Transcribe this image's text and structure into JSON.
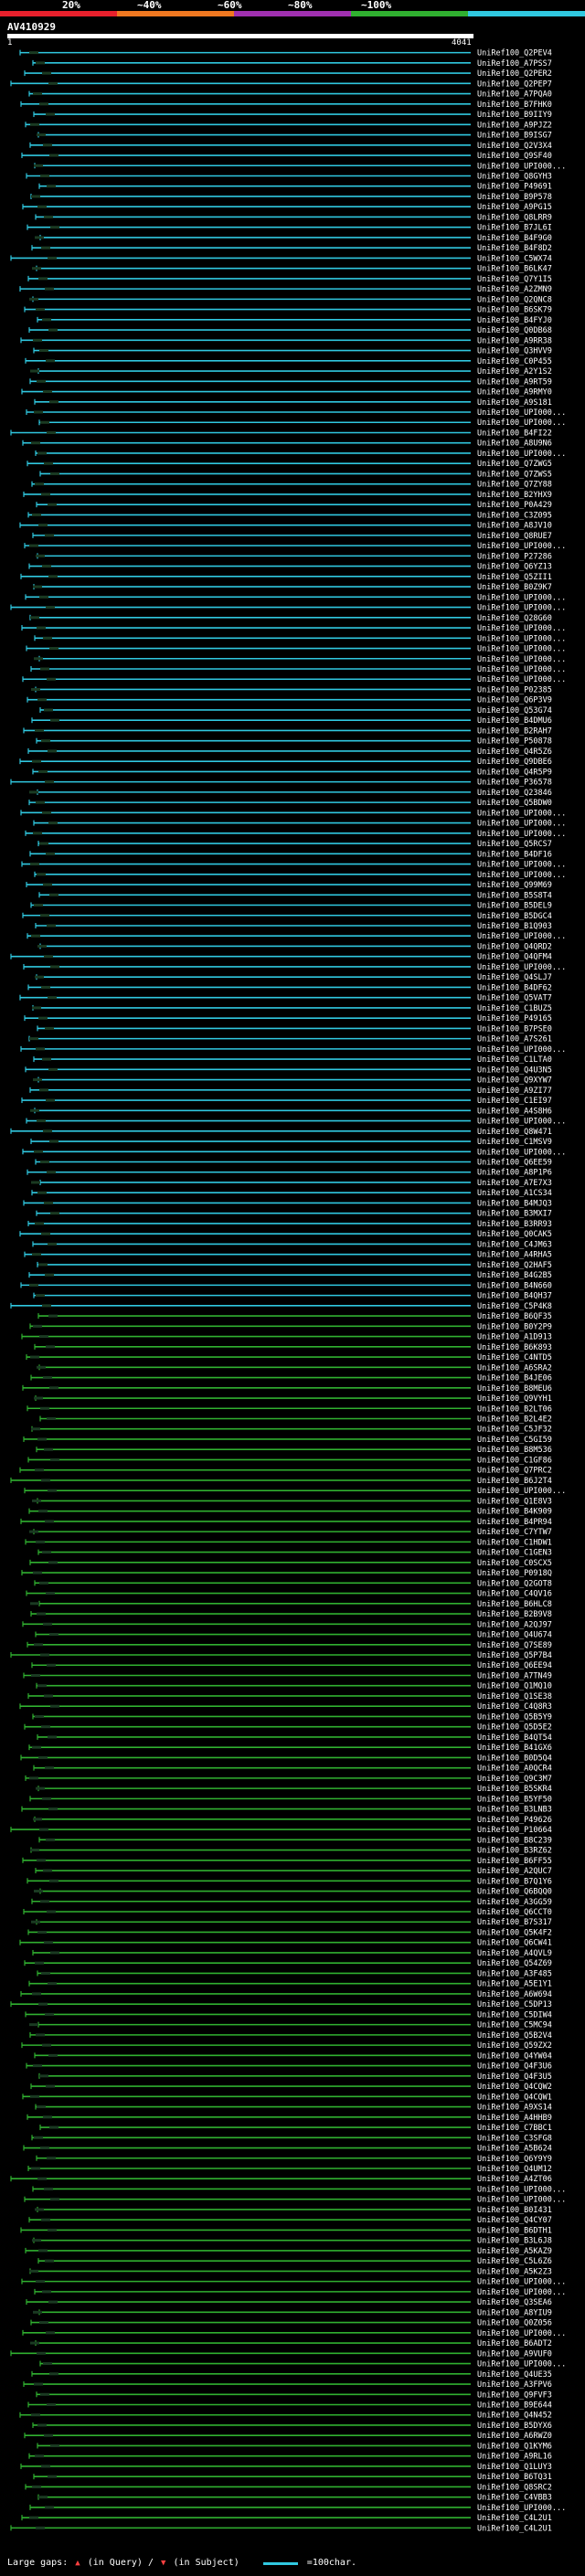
{
  "header": {
    "identity_scale": [
      {
        "label": "20%",
        "color": "#e8202c"
      },
      {
        "label": "~40%",
        "color": "#f07820"
      },
      {
        "label": "~60%",
        "color": "#a030b0"
      },
      {
        "label": "~80%",
        "color": "#30b030"
      },
      {
        "label": "~100%",
        "color": "#30c8e0"
      }
    ],
    "query_name": "AV410929",
    "start": "1",
    "end": "4041"
  },
  "footer": {
    "large_gaps_label": "Large gaps:",
    "in_query": "(in Query)",
    "separator": "/",
    "in_subject": "(in Subject)",
    "scale_label": "=100char."
  },
  "hits": [
    "UniRef100_Q2PEV4",
    "UniRef100_A7PSS7",
    "UniRef100_Q2PER2",
    "UniRef100_Q2PEP7",
    "UniRef100_A7PQA0",
    "UniRef100_B7FHK0",
    "UniRef100_B9IIY9",
    "UniRef100_A9PJZ2",
    "UniRef100_B9ISG7",
    "UniRef100_Q2V3X4",
    "UniRef100_Q9SF40",
    "UniRef100_UPI000...",
    "UniRef100_Q8GYH3",
    "UniRef100_P49691",
    "UniRef100_B9P578",
    "UniRef100_A9PG15",
    "UniRef100_Q8LRR9",
    "UniRef100_B7JL6I",
    "UniRef100_B4F9G0",
    "UniRef100_B4F8D2",
    "UniRef100_C5WX74",
    "UniRef100_B6LK47",
    "UniRef100_Q7Y1I5",
    "UniRef100_A2ZMN9",
    "UniRef100_Q2QNC8",
    "UniRef100_B6SK79",
    "UniRef100_B4FYJ0",
    "UniRef100_Q0DB68",
    "UniRef100_A9RR38",
    "UniRef100_Q3HVV9",
    "UniRef100_C0P455",
    "UniRef100_A2Y1S2",
    "UniRef100_A9RT59",
    "UniRef100_A9RMY0",
    "UniRef100_A9S181",
    "UniRef100_UPI000...",
    "UniRef100_UPI000...",
    "UniRef100_B4FI22",
    "UniRef100_A8U9N6",
    "UniRef100_UPI000...",
    "UniRef100_Q7ZWG5",
    "UniRef100_Q7ZWS5",
    "UniRef100_Q7ZY88",
    "UniRef100_B2YHX9",
    "UniRef100_P0A429",
    "UniRef100_C3Z095",
    "UniRef100_A8JV10",
    "UniRef100_Q8RUE7",
    "UniRef100_UPI000...",
    "UniRef100_P27286",
    "UniRef100_Q6YZ13",
    "UniRef100_Q5ZII1",
    "UniRef100_B0Z9K7",
    "UniRef100_UPI000...",
    "UniRef100_UPI000...",
    "UniRef100_Q28G60",
    "UniRef100_UPI000...",
    "UniRef100_UPI000...",
    "UniRef100_UPI000...",
    "UniRef100_UPI000...",
    "UniRef100_UPI000...",
    "UniRef100_UPI000...",
    "UniRef100_P02385",
    "UniRef100_Q6P3V9",
    "UniRef100_Q53G74",
    "UniRef100_B4DMU6",
    "UniRef100_B2RAH7",
    "UniRef100_P50878",
    "UniRef100_Q4R5Z6",
    "UniRef100_Q9DBE6",
    "UniRef100_Q4R5P9",
    "UniRef100_P36578",
    "UniRef100_Q23846",
    "UniRef100_Q5BDW0",
    "UniRef100_UPI000...",
    "UniRef100_UPI000...",
    "UniRef100_UPI000...",
    "UniRef100_Q5RCS7",
    "UniRef100_B4DF16",
    "UniRef100_UPI000...",
    "UniRef100_UPI000...",
    "UniRef100_Q99M69",
    "UniRef100_B5S8T4",
    "UniRef100_B5DEL9",
    "UniRef100_B5DGC4",
    "UniRef100_B1Q903",
    "UniRef100_UPI000...",
    "UniRef100_Q4QRD2",
    "UniRef100_Q4QFM4",
    "UniRef100_UPI000...",
    "UniRef100_Q4SLJ7",
    "UniRef100_B4DF62",
    "UniRef100_Q5VAT7",
    "UniRef100_C1BUZ5",
    "UniRef100_P49165",
    "UniRef100_B7PSE0",
    "UniRef100_A7S261",
    "UniRef100_UPI000...",
    "UniRef100_C1LTA0",
    "UniRef100_Q4U3N5",
    "UniRef100_Q9XYW7",
    "UniRef100_A9ZI77",
    "UniRef100_C1EI97",
    "UniRef100_A4S8H6",
    "UniRef100_UPI000...",
    "UniRef100_Q8W471",
    "UniRef100_C1MSV9",
    "UniRef100_UPI000...",
    "UniRef100_Q6EE59",
    "UniRef100_A8P1P6",
    "UniRef100_A7E7X3",
    "UniRef100_A1CS34",
    "UniRef100_B4MJQ3",
    "UniRef100_B3MXI7",
    "UniRef100_B3RR93",
    "UniRef100_Q0CAK5",
    "UniRef100_C4JM63",
    "UniRef100_A4RHA5",
    "UniRef100_Q2HAF5",
    "UniRef100_B4G2B5",
    "UniRef100_B4N660",
    "UniRef100_B4QH37",
    "UniRef100_C5P4K8",
    "UniRef100_B6QF35",
    "UniRef100_B0Y2P9",
    "UniRef100_A1D913",
    "UniRef100_B6K893",
    "UniRef100_C4NTD5",
    "UniRef100_A6SRA2",
    "UniRef100_B4JE06",
    "UniRef100_B8MEU6",
    "UniRef100_Q9VYH1",
    "UniRef100_B2LT06",
    "UniRef100_B2L4E2",
    "UniRef100_C5JF32",
    "UniRef100_C5GI59",
    "UniRef100_B8M536",
    "UniRef100_C1GF86",
    "UniRef100_Q7PRC2",
    "UniRef100_B6J2T4",
    "UniRef100_UPI000...",
    "UniRef100_Q1E8V3",
    "UniRef100_B4K909",
    "UniRef100_B4PR94",
    "UniRef100_C7YTW7",
    "UniRef100_C1HDW1",
    "UniRef100_C1GEN3",
    "UniRef100_C0SCX5",
    "UniRef100_P0918Q",
    "UniRef100_Q2GOT8",
    "UniRef100_C4QV16",
    "UniRef100_B6HLC8",
    "UniRef100_B2B9V8",
    "UniRef100_A2QJ97",
    "UniRef100_Q4U674",
    "UniRef100_Q7SE89",
    "UniRef100_Q5P7B4",
    "UniRef100_Q6EE94",
    "UniRef100_A7TN49",
    "UniRef100_Q1MQ10",
    "UniRef100_Q1SE38",
    "UniRef100_C4Q8R3",
    "UniRef100_Q5B5Y9",
    "UniRef100_Q5D5E2",
    "UniRef100_B4QT54",
    "UniRef100_B41GX6",
    "UniRef100_B0D5Q4",
    "UniRef100_A0QCR4",
    "UniRef100_Q9C3M7",
    "UniRef100_B5SKR4",
    "UniRef100_B5YF50",
    "UniRef100_B3LNB3",
    "UniRef100_P49626",
    "UniRef100_P10664",
    "UniRef100_B8C239",
    "UniRef100_B3RZ62",
    "UniRef100_B6FF55",
    "UniRef100_A2QUC7",
    "UniRef100_B7Q1Y6",
    "UniRef100_Q6BQQ0",
    "UniRef100_A3GG59",
    "UniRef100_Q6CCT0",
    "UniRef100_B7S317",
    "UniRef100_Q5K4F2",
    "UniRef100_Q6CW41",
    "UniRef100_A4QVL9",
    "UniRef100_Q54Z69",
    "UniRef100_A3F485",
    "UniRef100_A5E1Y1",
    "UniRef100_A6W694",
    "UniRef100_C5DP13",
    "UniRef100_C5DIW4",
    "UniRef100_C5MC94",
    "UniRef100_Q5B2V4",
    "UniRef100_Q59ZX2",
    "UniRef100_Q4YW04",
    "UniRef100_Q4F3U6",
    "UniRef100_Q4F3U5",
    "UniRef100_Q4CQW2",
    "UniRef100_Q4CQW1",
    "UniRef100_A9XS14",
    "UniRef100_A4HHB9",
    "UniRef100_C7BBC1",
    "UniRef100_C3SFG8",
    "UniRef100_A5B624",
    "UniRef100_Q6Y9Y9",
    "UniRef100_Q4UM12",
    "UniRef100_A4ZT06",
    "UniRef100_UPI000...",
    "UniRef100_UPI000...",
    "UniRef100_B0I431",
    "UniRef100_Q4CY07",
    "UniRef100_B6DTH1",
    "UniRef100_B3L6J8",
    "UniRef100_A5KAZ9",
    "UniRef100_C5L6Z6",
    "UniRef100_A5K2Z3",
    "UniRef100_UPI000...",
    "UniRef100_UPI000...",
    "UniRef100_Q3SEA6",
    "UniRef100_A8YIU9",
    "UniRef100_Q0Z056",
    "UniRef100_UPI000...",
    "UniRef100_B6ADT2",
    "UniRef100_A9VUF0",
    "UniRef100_UPI000...",
    "UniRef100_Q4UE35",
    "UniRef100_A3FPV6",
    "UniRef100_Q9FVF3",
    "UniRef100_B9E644",
    "UniRef100_Q4N452",
    "UniRef100_B5DYX6",
    "UniRef100_A6RWZ0",
    "UniRef100_Q1KYM6",
    "UniRef100_A9RL16",
    "UniRef100_Q1LUY3",
    "UniRef100_B6TQ31",
    "UniRef100_Q8SRC2",
    "UniRef100_C4VBB3",
    "UniRef100_UPI000...",
    "UniRef100_C4L2U1",
    "UniRef100_C4L2U1"
  ]
}
